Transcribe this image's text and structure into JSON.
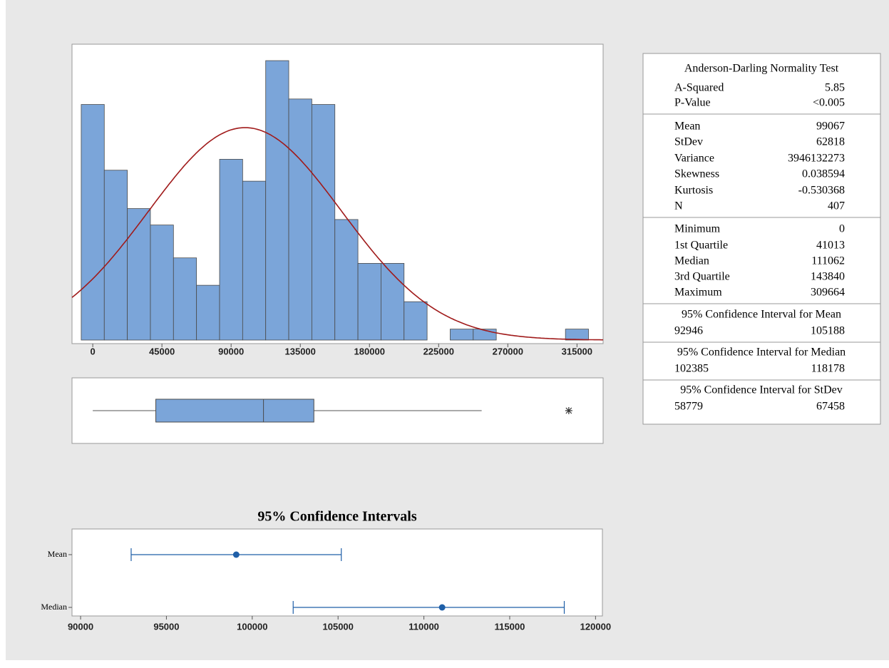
{
  "chart_data": [
    {
      "type": "histogram",
      "bins": [
        -7500,
        7500,
        22500,
        37500,
        52500,
        67500,
        82500,
        97500,
        112500,
        127500,
        142500,
        157500,
        172500,
        187500,
        202500,
        217500,
        232500,
        247500,
        262500,
        277500,
        292500,
        307500,
        322500
      ],
      "counts": [
        43,
        31,
        24,
        21,
        15,
        10,
        33,
        29,
        51,
        44,
        43,
        22,
        14,
        14,
        7,
        0,
        2,
        2,
        0,
        0,
        0,
        2
      ],
      "xlim": [
        -13500,
        332000
      ],
      "ylim": [
        0,
        54
      ],
      "xticks": [
        0,
        45000,
        90000,
        135000,
        180000,
        225000,
        270000,
        315000
      ],
      "color": "#7ba5d9",
      "curve_color": "#a01a1a"
    },
    {
      "type": "boxplot",
      "whisker_high": 253000,
      "color": "#7ba5d9"
    },
    {
      "type": "interval",
      "title": "95% Confidence Intervals",
      "categories": [
        "Mean",
        "Median"
      ],
      "xlim": [
        89500,
        120400
      ],
      "xticks": [
        90000,
        95000,
        100000,
        105000,
        110000,
        115000,
        120000
      ],
      "color": "#1f5fa8"
    }
  ],
  "stats": {
    "title": "Anderson-Darling Normality Test",
    "groups": [
      [
        {
          "label": "A-Squared",
          "value": 5.85
        },
        {
          "label": "P-Value",
          "value": "<0.005"
        }
      ],
      [
        {
          "label": "Mean",
          "value": 99067
        },
        {
          "label": "StDev",
          "value": 62818
        },
        {
          "label": "Variance",
          "value": 3946132273
        },
        {
          "label": "Skewness",
          "value": 0.038594
        },
        {
          "label": "Kurtosis",
          "value": -0.530368
        },
        {
          "label": "N",
          "value": 407
        }
      ],
      [
        {
          "label": "Minimum",
          "value": 0
        },
        {
          "label": "1st Quartile",
          "value": 41013
        },
        {
          "label": "Median",
          "value": 111062
        },
        {
          "label": "3rd Quartile",
          "value": 143840
        },
        {
          "label": "Maximum",
          "value": 309664
        }
      ]
    ],
    "intervals": [
      {
        "title": "95% Confidence Interval for Mean",
        "low": 92946,
        "high": 105188
      },
      {
        "title": "95% Confidence Interval for Median",
        "low": 102385,
        "high": 118178
      },
      {
        "title": "95% Confidence Interval for StDev",
        "low": 58779,
        "high": 67458
      }
    ]
  }
}
